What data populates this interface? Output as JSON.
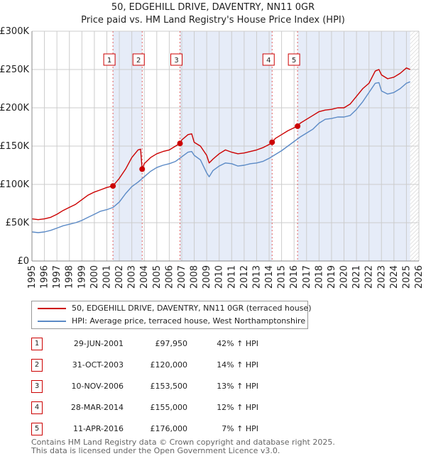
{
  "title_line1": "50, EDGEHILL DRIVE, DAVENTRY, NN11 0GR",
  "title_line2": "Price paid vs. HM Land Registry's House Price Index (HPI)",
  "colors": {
    "property": "#cc0000",
    "hpi": "#5b8ac6",
    "shade": "#dde6f5",
    "grid": "#cccccc",
    "marker_border": "#cc0000"
  },
  "legend": {
    "property_label": "50, EDGEHILL DRIVE, DAVENTRY, NN11 0GR (terraced house)",
    "hpi_label": "HPI: Average price, terraced house, West Northamptonshire"
  },
  "sales": [
    {
      "num": "1",
      "date": "29-JUN-2001",
      "price": "£97,950",
      "hpi": "42% ↑ HPI"
    },
    {
      "num": "2",
      "date": "31-OCT-2003",
      "price": "£120,000",
      "hpi": "14% ↑ HPI"
    },
    {
      "num": "3",
      "date": "10-NOV-2006",
      "price": "£153,500",
      "hpi": "13% ↑ HPI"
    },
    {
      "num": "4",
      "date": "28-MAR-2014",
      "price": "£155,000",
      "hpi": "12% ↑ HPI"
    },
    {
      "num": "5",
      "date": "11-APR-2016",
      "price": "£176,000",
      "hpi": "7% ↑ HPI"
    }
  ],
  "footer_line1": "Contains HM Land Registry data © Crown copyright and database right 2025.",
  "footer_line2": "This data is licensed under the Open Government Licence v3.0.",
  "chart_data": {
    "type": "line",
    "title": "50, EDGEHILL DRIVE, DAVENTRY, NN11 0GR — Price paid vs. HM Land Registry's House Price Index (HPI)",
    "xlim": [
      1995,
      2026
    ],
    "ylim": [
      0,
      300000
    ],
    "y_ticks": [
      0,
      50000,
      100000,
      150000,
      200000,
      250000,
      300000
    ],
    "y_tick_labels": [
      "£0",
      "£50K",
      "£100K",
      "£150K",
      "£200K",
      "£250K",
      "£300K"
    ],
    "x_ticks": [
      1995,
      1996,
      1997,
      1998,
      1999,
      2000,
      2001,
      2002,
      2003,
      2004,
      2005,
      2006,
      2007,
      2008,
      2009,
      2010,
      2011,
      2012,
      2013,
      2014,
      2015,
      2016,
      2017,
      2018,
      2019,
      2020,
      2021,
      2022,
      2023,
      2024,
      2025,
      2026
    ],
    "x_tick_labels": [
      "1995",
      "1996",
      "1997",
      "1998",
      "1999",
      "2000",
      "2001",
      "2002",
      "2003",
      "2004",
      "2005",
      "2006",
      "2007",
      "2008",
      "2009",
      "2010",
      "2011",
      "2012",
      "2013",
      "2014",
      "2015",
      "2016",
      "2017",
      "2018",
      "2019",
      "2020",
      "2021",
      "2022",
      "2023",
      "2024",
      "2025",
      "2026"
    ],
    "shaded_ranges": [
      [
        2001.49,
        2003.83
      ],
      [
        2006.86,
        2014.24
      ],
      [
        2016.28,
        2025.3
      ]
    ],
    "future_hatch_from": 2025.3,
    "sale_markers": [
      {
        "label": "1",
        "x": 2001.49,
        "y": 97950
      },
      {
        "label": "2",
        "x": 2003.83,
        "y": 120000
      },
      {
        "label": "3",
        "x": 2006.86,
        "y": 153500
      },
      {
        "label": "4",
        "x": 2014.24,
        "y": 155000
      },
      {
        "label": "5",
        "x": 2016.28,
        "y": 176000
      }
    ],
    "series": [
      {
        "name": "50, EDGEHILL DRIVE, DAVENTRY, NN11 0GR (terraced house)",
        "x": [
          1995,
          1995.5,
          1996,
          1996.5,
          1997,
          1997.5,
          1998,
          1998.5,
          1999,
          1999.5,
          2000,
          2000.5,
          2001,
          2001.49,
          2002,
          2002.5,
          2003,
          2003.5,
          2003.7,
          2003.83,
          2004,
          2004.5,
          2005,
          2005.5,
          2006,
          2006.5,
          2006.86,
          2007,
          2007.5,
          2007.8,
          2008,
          2008.5,
          2009,
          2009.2,
          2009.5,
          2010,
          2010.5,
          2011,
          2011.5,
          2012,
          2012.5,
          2013,
          2013.5,
          2014,
          2014.24,
          2014.5,
          2015,
          2015.5,
          2016,
          2016.28,
          2016.5,
          2017,
          2017.5,
          2018,
          2018.5,
          2019,
          2019.5,
          2020,
          2020.5,
          2021,
          2021.5,
          2022,
          2022.5,
          2022.8,
          2023,
          2023.5,
          2024,
          2024.5,
          2025,
          2025.3
        ],
        "values": [
          55000,
          54000,
          55000,
          57000,
          61000,
          66000,
          70000,
          74000,
          80000,
          86000,
          90000,
          93000,
          96000,
          97950,
          108000,
          120000,
          135000,
          145000,
          146000,
          120000,
          127000,
          135000,
          140000,
          143000,
          145000,
          150000,
          153500,
          158000,
          165000,
          166000,
          155000,
          150000,
          138000,
          128000,
          133000,
          140000,
          145000,
          142000,
          140000,
          141000,
          143000,
          145000,
          148000,
          152000,
          155000,
          160000,
          165000,
          170000,
          174000,
          176000,
          180000,
          185000,
          190000,
          195000,
          197000,
          198000,
          200000,
          200000,
          205000,
          215000,
          225000,
          232000,
          248000,
          250000,
          243000,
          238000,
          240000,
          245000,
          252000,
          250000
        ]
      },
      {
        "name": "HPI: Average price, terraced house, West Northamptonshire",
        "x": [
          1995,
          1995.5,
          1996,
          1996.5,
          1997,
          1997.5,
          1998,
          1998.5,
          1999,
          1999.5,
          2000,
          2000.5,
          2001,
          2001.5,
          2002,
          2002.5,
          2003,
          2003.5,
          2004,
          2004.5,
          2005,
          2005.5,
          2006,
          2006.5,
          2007,
          2007.5,
          2007.8,
          2008,
          2008.5,
          2009,
          2009.2,
          2009.5,
          2010,
          2010.5,
          2011,
          2011.5,
          2012,
          2012.5,
          2013,
          2013.5,
          2014,
          2014.5,
          2015,
          2015.5,
          2016,
          2016.5,
          2017,
          2017.5,
          2018,
          2018.5,
          2019,
          2019.5,
          2020,
          2020.5,
          2021,
          2021.5,
          2022,
          2022.5,
          2022.8,
          2023,
          2023.5,
          2024,
          2024.5,
          2025,
          2025.3
        ],
        "values": [
          38000,
          37000,
          38000,
          40000,
          43000,
          46000,
          48000,
          50000,
          53000,
          57000,
          61000,
          65000,
          67000,
          70000,
          77000,
          88000,
          97000,
          103000,
          110000,
          117000,
          122000,
          125000,
          127000,
          130000,
          136000,
          142000,
          143000,
          138000,
          132000,
          115000,
          110000,
          118000,
          124000,
          128000,
          127000,
          124000,
          125000,
          127000,
          128000,
          130000,
          134000,
          139000,
          144000,
          150000,
          156000,
          162000,
          167000,
          172000,
          180000,
          185000,
          186000,
          188000,
          188000,
          190000,
          198000,
          208000,
          220000,
          232000,
          233000,
          222000,
          218000,
          220000,
          225000,
          232000,
          234000
        ]
      }
    ]
  }
}
